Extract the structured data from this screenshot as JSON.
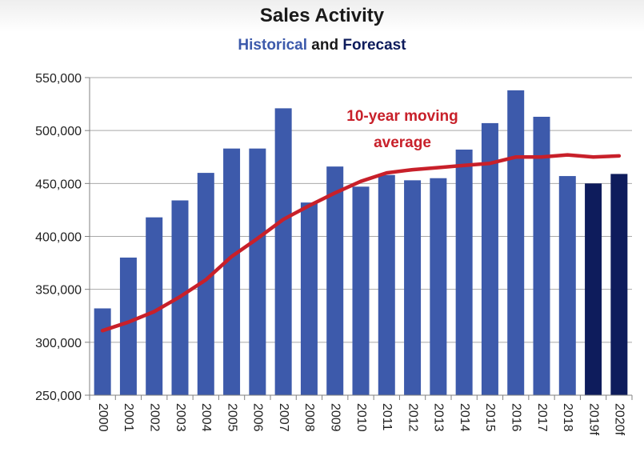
{
  "chart_data": {
    "type": "bar",
    "title": "Sales Activity",
    "subtitle": {
      "part1": "Historical",
      "part2": " and ",
      "part3": "Forecast"
    },
    "xlabel": "",
    "ylabel": "",
    "categories": [
      "2000",
      "2001",
      "2002",
      "2003",
      "2004",
      "2005",
      "2006",
      "2007",
      "2008",
      "2009",
      "2010",
      "2011",
      "2012",
      "2013",
      "2014",
      "2015",
      "2016",
      "2017",
      "2018",
      "2019f",
      "2020f"
    ],
    "series": [
      {
        "values": [
          332000,
          380000,
          418000,
          434000,
          460000,
          483000,
          483000,
          521000,
          432000,
          466000,
          447000,
          458000,
          453000,
          455000,
          482000,
          507000,
          538000,
          513000,
          457000,
          450000,
          459000
        ],
        "historical_color": "#3d5aab",
        "forecast_color": "#0e1c5c",
        "forecast_from_index": 19
      },
      {
        "name": "10-year moving average",
        "type": "line",
        "color": "#c8202a",
        "values": [
          311000,
          319000,
          329000,
          343000,
          359000,
          381000,
          398000,
          416000,
          429000,
          441000,
          452000,
          460000,
          463000,
          465000,
          467000,
          469000,
          475000,
          475000,
          477000,
          475000,
          476000
        ]
      }
    ],
    "annotation": {
      "line1": "10-year moving",
      "line2": "average"
    },
    "ylim": [
      250000,
      550000
    ],
    "yticks": [
      250000,
      300000,
      350000,
      400000,
      450000,
      500000,
      550000
    ],
    "ytick_labels": [
      "250,000",
      "300,000",
      "350,000",
      "400,000",
      "450,000",
      "500,000",
      "550,000"
    ],
    "grid": true,
    "legend": "none",
    "colors": {
      "historical": "#3d5aab",
      "forecast": "#0e1c5c",
      "moving_average": "#c8202a",
      "grid": "#a8a8a8"
    }
  }
}
